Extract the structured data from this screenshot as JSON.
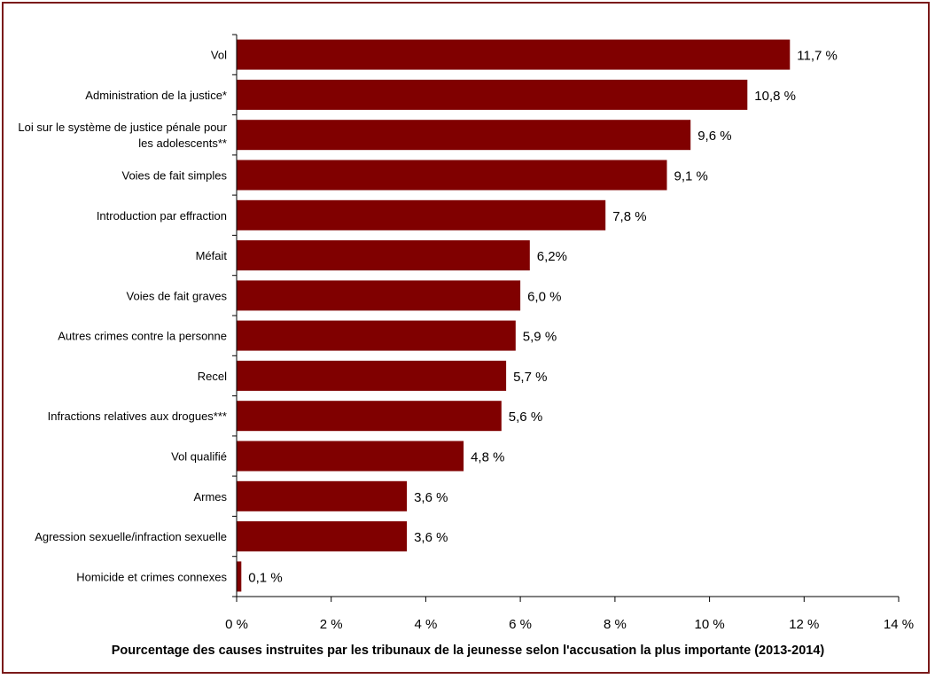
{
  "chart_data": {
    "type": "bar",
    "orientation": "horizontal",
    "categories": [
      "Vol",
      "Administration de la justice*",
      "Loi sur le système de justice pénale pour les adolescents**",
      "Voies de fait simples",
      "Introduction par effraction",
      "Méfait",
      "Voies de fait graves",
      "Autres crimes contre la personne",
      "Recel",
      "Infractions relatives aux drogues***",
      "Vol qualifié",
      "Armes",
      "Agression sexuelle/infraction sexuelle",
      "Homicide et crimes connexes"
    ],
    "category_lines": [
      [
        "Vol"
      ],
      [
        "Administration de la justice*"
      ],
      [
        "Loi sur le système de justice pénale pour",
        "les adolescents**"
      ],
      [
        "Voies de fait simples"
      ],
      [
        "Introduction par effraction"
      ],
      [
        "Méfait"
      ],
      [
        "Voies de fait graves"
      ],
      [
        "Autres crimes contre la personne"
      ],
      [
        "Recel"
      ],
      [
        "Infractions relatives aux drogues***"
      ],
      [
        "Vol qualifié"
      ],
      [
        "Armes"
      ],
      [
        "Agression sexuelle/infraction sexuelle"
      ],
      [
        "Homicide et crimes connexes"
      ]
    ],
    "values": [
      11.7,
      10.8,
      9.6,
      9.1,
      7.8,
      6.2,
      6.0,
      5.9,
      5.7,
      5.6,
      4.8,
      3.6,
      3.6,
      0.1
    ],
    "value_labels": [
      "11,7 %",
      "10,8 %",
      "9,6 %",
      "9,1 %",
      "7,8 %",
      "6,2%",
      "6,0 %",
      "5,9 %",
      "5,7 %",
      "5,6 %",
      "4,8 %",
      "3,6 %",
      "3,6 %",
      "0,1 %"
    ],
    "xlim": [
      0,
      14
    ],
    "x_ticks": [
      0,
      2,
      4,
      6,
      8,
      10,
      12,
      14
    ],
    "x_tick_labels": [
      "0 %",
      "2 %",
      "4 %",
      "6 %",
      "8 %",
      "10 %",
      "12 %",
      "14 %"
    ],
    "xlabel": "Pourcentage des causes instruites par les tribunaux de la jeunesse selon l'accusation la plus importante (2013-2014)",
    "ylabel": "",
    "title": "",
    "grid": false,
    "legend": "none",
    "colors": {
      "bar": "#800000",
      "frame": "#7a1a1a",
      "axis": "#000000"
    }
  }
}
